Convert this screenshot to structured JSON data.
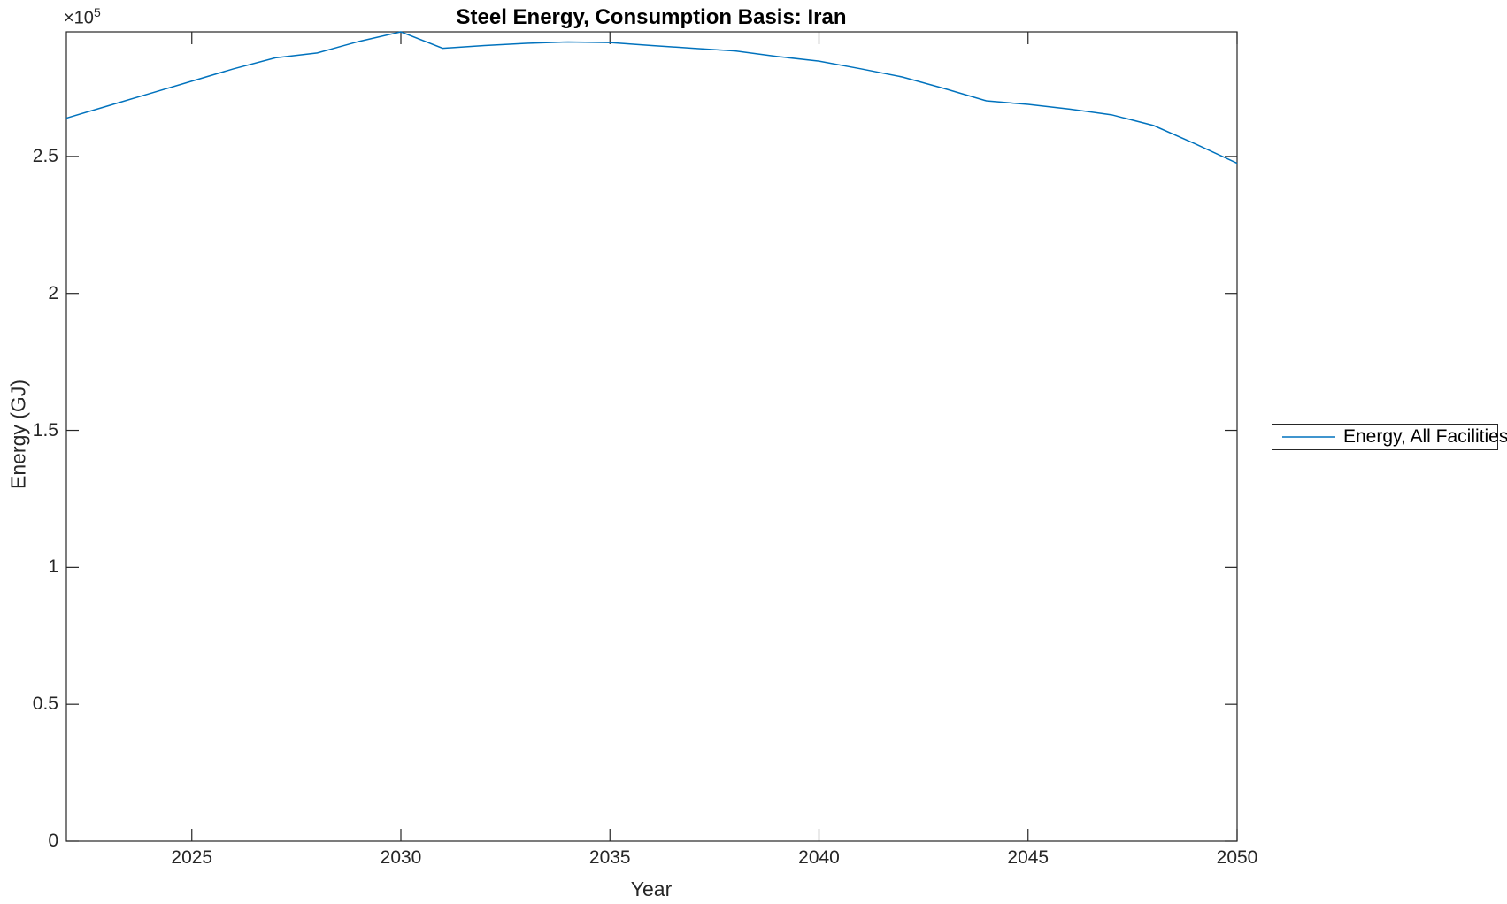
{
  "window": {
    "background": "#ffffff"
  },
  "chart": {
    "title": "Steel Energy, Consumption Basis: Iran",
    "xlabel": "Year",
    "ylabel": "Energy (GJ)",
    "y_exponent": {
      "base": "×10",
      "power": "5"
    }
  },
  "legend": {
    "entries": [
      {
        "label": "Energy, All Facilities",
        "color": "#0072BD"
      }
    ],
    "position": "outside-right"
  },
  "colors": {
    "line": "#0072BD",
    "axis": "#262626",
    "tick_text": "#262626",
    "title_text": "#000000",
    "background": "#ffffff"
  },
  "chart_data": {
    "type": "line",
    "title": "Steel Energy, Consumption Basis: Iran",
    "xlabel": "Year",
    "ylabel": "Energy (GJ)",
    "grid": false,
    "legend_position": "outside-right",
    "xlim": [
      2022,
      2050
    ],
    "ylim": [
      0,
      295500
    ],
    "x_ticks": {
      "values": [
        2025,
        2030,
        2035,
        2040,
        2045,
        2050
      ],
      "labels": [
        "2025",
        "2030",
        "2035",
        "2040",
        "2045",
        "2050"
      ]
    },
    "y_ticks": {
      "values": [
        0,
        50000,
        100000,
        150000,
        200000,
        250000
      ],
      "labels": [
        "0",
        "0.5",
        "1",
        "1.5",
        "2",
        "2.5"
      ]
    },
    "x": [
      2022,
      2023,
      2024,
      2025,
      2026,
      2027,
      2028,
      2029,
      2030,
      2031,
      2032,
      2033,
      2034,
      2035,
      2036,
      2037,
      2038,
      2039,
      2040,
      2041,
      2042,
      2043,
      2044,
      2045,
      2046,
      2047,
      2048,
      2049,
      2050
    ],
    "series": [
      {
        "name": "Energy, All Facilities",
        "color": "#0072BD",
        "values": [
          264000,
          268500,
          273000,
          277500,
          282000,
          286000,
          287800,
          292000,
          295500,
          289500,
          290500,
          291300,
          291800,
          291600,
          290500,
          289500,
          288500,
          286500,
          284800,
          282000,
          279000,
          274800,
          270300,
          269000,
          267300,
          265200,
          261300,
          254600,
          247500
        ]
      }
    ]
  }
}
